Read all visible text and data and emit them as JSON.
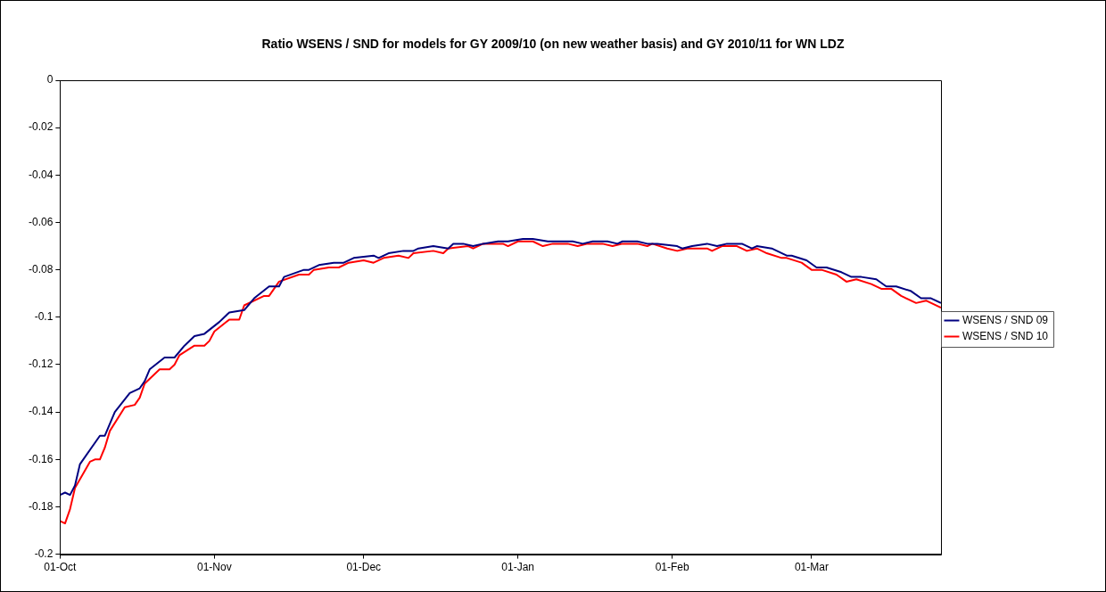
{
  "chart_data": {
    "type": "line",
    "title": "Ratio WSENS / SND for models for GY 2009/10 (on new weather basis) and GY 2010/11 for WN LDZ",
    "xlim": [
      "2009-10-01",
      "2010-03-27"
    ],
    "xticks": [
      {
        "value": "2009-10-01",
        "label": "01-Oct"
      },
      {
        "value": "2009-11-01",
        "label": "01-Nov"
      },
      {
        "value": "2009-12-01",
        "label": "01-Dec"
      },
      {
        "value": "2010-01-01",
        "label": "01-Jan"
      },
      {
        "value": "2010-02-01",
        "label": "01-Feb"
      },
      {
        "value": "2010-03-01",
        "label": "01-Mar"
      }
    ],
    "ylim": [
      -0.2,
      0
    ],
    "yticks": [
      -0.2,
      -0.18,
      -0.16,
      -0.14,
      -0.12,
      -0.1,
      -0.08,
      -0.06,
      -0.04,
      -0.02,
      0
    ],
    "grid": false,
    "legend": "right",
    "marker": "none",
    "line_style": "solid",
    "series": [
      {
        "name": "WSENS / SND 09",
        "color": "#000080",
        "x": [
          "2009-10-01",
          "2009-10-02",
          "2009-10-03",
          "2009-10-04",
          "2009-10-05",
          "2009-10-09",
          "2009-10-10",
          "2009-10-12",
          "2009-10-15",
          "2009-10-17",
          "2009-10-18",
          "2009-10-19",
          "2009-10-22",
          "2009-10-24",
          "2009-10-26",
          "2009-10-28",
          "2009-10-30",
          "2009-11-02",
          "2009-11-04",
          "2009-11-07",
          "2009-11-09",
          "2009-11-12",
          "2009-11-14",
          "2009-11-15",
          "2009-11-19",
          "2009-11-20",
          "2009-11-22",
          "2009-11-25",
          "2009-11-27",
          "2009-11-29",
          "2009-12-03",
          "2009-12-04",
          "2009-12-06",
          "2009-12-09",
          "2009-12-11",
          "2009-12-12",
          "2009-12-15",
          "2009-12-18",
          "2009-12-19",
          "2009-12-21",
          "2009-12-23",
          "2009-12-25",
          "2009-12-28",
          "2009-12-30",
          "2010-01-02",
          "2010-01-04",
          "2010-01-07",
          "2010-01-09",
          "2010-01-12",
          "2010-01-14",
          "2010-01-16",
          "2010-01-19",
          "2010-01-21",
          "2010-01-22",
          "2010-01-25",
          "2010-01-27",
          "2010-01-29",
          "2010-02-02",
          "2010-02-03",
          "2010-02-05",
          "2010-02-08",
          "2010-02-10",
          "2010-02-12",
          "2010-02-15",
          "2010-02-17",
          "2010-02-18",
          "2010-02-21",
          "2010-02-24",
          "2010-02-25",
          "2010-02-28",
          "2010-03-02",
          "2010-03-04",
          "2010-03-07",
          "2010-03-09",
          "2010-03-11",
          "2010-03-14",
          "2010-03-16",
          "2010-03-18",
          "2010-03-21",
          "2010-03-23",
          "2010-03-25",
          "2010-03-27"
        ],
        "values": [
          -0.175,
          -0.174,
          -0.175,
          -0.171,
          -0.162,
          -0.15,
          -0.15,
          -0.14,
          -0.132,
          -0.13,
          -0.127,
          -0.122,
          -0.117,
          -0.117,
          -0.112,
          -0.108,
          -0.107,
          -0.102,
          -0.098,
          -0.097,
          -0.092,
          -0.087,
          -0.087,
          -0.083,
          -0.08,
          -0.08,
          -0.078,
          -0.077,
          -0.077,
          -0.075,
          -0.074,
          -0.075,
          -0.073,
          -0.072,
          -0.072,
          -0.071,
          -0.07,
          -0.071,
          -0.069,
          -0.069,
          -0.07,
          -0.069,
          -0.068,
          -0.068,
          -0.067,
          -0.067,
          -0.068,
          -0.068,
          -0.068,
          -0.069,
          -0.068,
          -0.068,
          -0.069,
          -0.068,
          -0.068,
          -0.069,
          -0.069,
          -0.07,
          -0.071,
          -0.07,
          -0.069,
          -0.07,
          -0.069,
          -0.069,
          -0.071,
          -0.07,
          -0.071,
          -0.074,
          -0.074,
          -0.076,
          -0.079,
          -0.079,
          -0.081,
          -0.083,
          -0.083,
          -0.084,
          -0.087,
          -0.087,
          -0.089,
          -0.092,
          -0.092,
          -0.094
        ]
      },
      {
        "name": "WSENS / SND 10",
        "color": "#ff0000",
        "x": [
          "2009-10-01",
          "2009-10-02",
          "2009-10-03",
          "2009-10-04",
          "2009-10-07",
          "2009-10-08",
          "2009-10-09",
          "2009-10-10",
          "2009-10-11",
          "2009-10-14",
          "2009-10-16",
          "2009-10-17",
          "2009-10-18",
          "2009-10-21",
          "2009-10-23",
          "2009-10-24",
          "2009-10-25",
          "2009-10-28",
          "2009-10-30",
          "2009-10-31",
          "2009-11-01",
          "2009-11-04",
          "2009-11-06",
          "2009-11-07",
          "2009-11-11",
          "2009-11-12",
          "2009-11-14",
          "2009-11-18",
          "2009-11-20",
          "2009-11-21",
          "2009-11-24",
          "2009-11-26",
          "2009-11-28",
          "2009-12-01",
          "2009-12-03",
          "2009-12-05",
          "2009-12-08",
          "2009-12-10",
          "2009-12-11",
          "2009-12-15",
          "2009-12-17",
          "2009-12-18",
          "2009-12-22",
          "2009-12-23",
          "2009-12-25",
          "2009-12-29",
          "2009-12-30",
          "2010-01-01",
          "2010-01-04",
          "2010-01-06",
          "2010-01-08",
          "2010-01-11",
          "2010-01-13",
          "2010-01-15",
          "2010-01-18",
          "2010-01-20",
          "2010-01-22",
          "2010-01-25",
          "2010-01-27",
          "2010-01-28",
          "2010-01-31",
          "2010-02-02",
          "2010-02-04",
          "2010-02-08",
          "2010-02-09",
          "2010-02-11",
          "2010-02-14",
          "2010-02-16",
          "2010-02-18",
          "2010-02-20",
          "2010-02-23",
          "2010-02-24",
          "2010-02-27",
          "2010-03-01",
          "2010-03-03",
          "2010-03-06",
          "2010-03-08",
          "2010-03-10",
          "2010-03-13",
          "2010-03-15",
          "2010-03-17",
          "2010-03-19",
          "2010-03-22",
          "2010-03-24",
          "2010-03-27"
        ],
        "values": [
          -0.186,
          -0.187,
          -0.181,
          -0.172,
          -0.161,
          -0.16,
          -0.16,
          -0.155,
          -0.148,
          -0.138,
          -0.137,
          -0.134,
          -0.128,
          -0.122,
          -0.122,
          -0.12,
          -0.116,
          -0.112,
          -0.112,
          -0.11,
          -0.106,
          -0.101,
          -0.101,
          -0.095,
          -0.091,
          -0.091,
          -0.085,
          -0.082,
          -0.082,
          -0.08,
          -0.079,
          -0.079,
          -0.077,
          -0.076,
          -0.077,
          -0.075,
          -0.074,
          -0.075,
          -0.073,
          -0.072,
          -0.073,
          -0.071,
          -0.07,
          -0.071,
          -0.069,
          -0.069,
          -0.07,
          -0.068,
          -0.068,
          -0.07,
          -0.069,
          -0.069,
          -0.07,
          -0.069,
          -0.069,
          -0.07,
          -0.069,
          -0.069,
          -0.07,
          -0.069,
          -0.071,
          -0.072,
          -0.071,
          -0.071,
          -0.072,
          -0.07,
          -0.07,
          -0.072,
          -0.071,
          -0.073,
          -0.075,
          -0.075,
          -0.077,
          -0.08,
          -0.08,
          -0.082,
          -0.085,
          -0.084,
          -0.086,
          -0.088,
          -0.088,
          -0.091,
          -0.094,
          -0.093,
          -0.096
        ]
      }
    ]
  }
}
